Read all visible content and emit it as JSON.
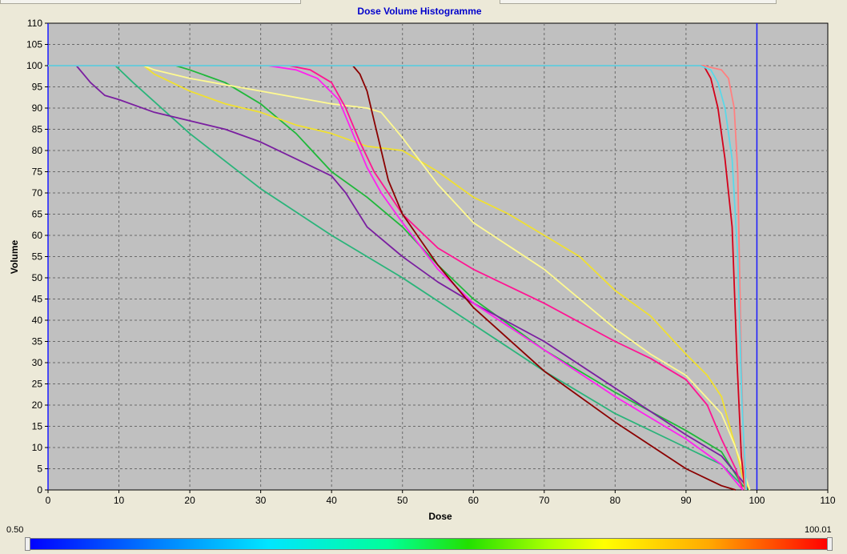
{
  "chart_data": {
    "type": "line",
    "title": "Dose Volume Histogramme",
    "xlabel": "Dose",
    "ylabel": "Volume",
    "xlim": [
      0,
      110
    ],
    "ylim": [
      0,
      110
    ],
    "xticks": [
      "0",
      "10",
      "20",
      "30",
      "40",
      "50",
      "60",
      "70",
      "80",
      "90",
      "100",
      "110"
    ],
    "yticks": [
      "0",
      "5",
      "10",
      "15",
      "20",
      "25",
      "30",
      "35",
      "40",
      "45",
      "50",
      "55",
      "60",
      "65",
      "70",
      "75",
      "80",
      "85",
      "90",
      "95",
      "100",
      "105",
      "110"
    ],
    "grid": true,
    "reference_lines_x": [
      0,
      100
    ],
    "series": [
      {
        "color": "#2ab47a",
        "x": [
          0,
          9.5,
          12,
          20,
          30,
          40,
          50,
          60,
          70,
          80,
          90,
          95,
          98,
          99
        ],
        "y": [
          100,
          100,
          96,
          84,
          71,
          60,
          50,
          39,
          28,
          18,
          10,
          6,
          1,
          0
        ]
      },
      {
        "color": "#1fb83a",
        "x": [
          0,
          18,
          20,
          25,
          30,
          35,
          40,
          45,
          50,
          55,
          60,
          70,
          80,
          90,
          95,
          98,
          99
        ],
        "y": [
          100,
          100,
          99,
          96,
          91,
          84,
          75,
          69,
          62,
          53,
          45,
          33,
          23,
          14,
          9,
          1,
          0
        ]
      },
      {
        "color": "#7a1fa0",
        "x": [
          0,
          4,
          6,
          8,
          10,
          15,
          20,
          25,
          30,
          35,
          40,
          42,
          45,
          50,
          55,
          60,
          70,
          80,
          90,
          95,
          98,
          99
        ],
        "y": [
          100,
          100,
          96,
          93,
          92,
          89,
          87,
          85,
          82,
          78,
          74,
          70,
          62,
          55,
          49,
          44,
          35,
          24,
          13,
          8,
          2,
          0
        ]
      },
      {
        "color": "#f0e030",
        "x": [
          0,
          13.5,
          15,
          20,
          25,
          30,
          35,
          40,
          45,
          50,
          52,
          55,
          60,
          65,
          70,
          75,
          80,
          85,
          90,
          93,
          95,
          97,
          98,
          99
        ],
        "y": [
          100,
          100,
          98,
          94,
          91,
          89,
          86,
          84,
          81,
          80,
          78,
          75,
          69,
          65,
          60,
          55,
          47,
          41,
          32,
          27,
          22,
          10,
          3,
          0
        ]
      },
      {
        "color": "#fffa90",
        "x": [
          0,
          13.5,
          15,
          20,
          30,
          40,
          45,
          47,
          50,
          55,
          60,
          70,
          80,
          85,
          90,
          95,
          97,
          99
        ],
        "y": [
          100,
          100,
          99,
          97,
          94,
          91,
          90,
          89,
          83,
          72,
          63,
          52,
          38,
          32,
          27,
          18,
          10,
          0
        ]
      },
      {
        "color": "#ff1493",
        "x": [
          0,
          34,
          37,
          40,
          42,
          44,
          46,
          48,
          50,
          55,
          60,
          70,
          80,
          85,
          90,
          93,
          95,
          97,
          98
        ],
        "y": [
          100,
          100,
          99,
          96,
          90,
          82,
          75,
          70,
          65,
          57,
          52,
          44,
          35,
          31,
          26,
          20,
          12,
          5,
          0
        ]
      },
      {
        "color": "#ff20f0",
        "x": [
          0,
          31,
          35,
          38,
          41,
          43,
          45,
          47,
          50,
          55,
          60,
          70,
          80,
          90,
          95,
          98
        ],
        "y": [
          100,
          100,
          99,
          97,
          92,
          84,
          76,
          70,
          63,
          52,
          44,
          33,
          22,
          12,
          6,
          0
        ]
      },
      {
        "color": "#8b0000",
        "x": [
          0,
          43,
          44,
          45,
          46,
          47,
          48,
          50,
          55,
          60,
          70,
          80,
          90,
          95,
          97
        ],
        "y": [
          100,
          100,
          98,
          94,
          87,
          80,
          73,
          65,
          53,
          43,
          28,
          16,
          5,
          1,
          0
        ]
      },
      {
        "color": "#d4001a",
        "x": [
          0,
          92.5,
          93.5,
          94.5,
          95.5,
          96.5,
          97.2,
          97.8,
          98.3
        ],
        "y": [
          100,
          100,
          97,
          90,
          78,
          62,
          30,
          8,
          0
        ]
      },
      {
        "color": "#ff8080",
        "x": [
          0,
          92.5,
          95,
          96,
          96.8,
          97.3,
          97.8,
          98.3
        ],
        "y": [
          100,
          100,
          99,
          97,
          90,
          75,
          30,
          0
        ]
      },
      {
        "color": "#5ad8e8",
        "x": [
          0,
          92,
          93.5,
          94.5,
          95.5,
          96.5,
          97.3,
          97.9,
          98.5
        ],
        "y": [
          100,
          100,
          99,
          96,
          90,
          78,
          55,
          20,
          0
        ]
      }
    ]
  },
  "colorbar": {
    "min_label": "0.50",
    "max_label": "100.01"
  }
}
